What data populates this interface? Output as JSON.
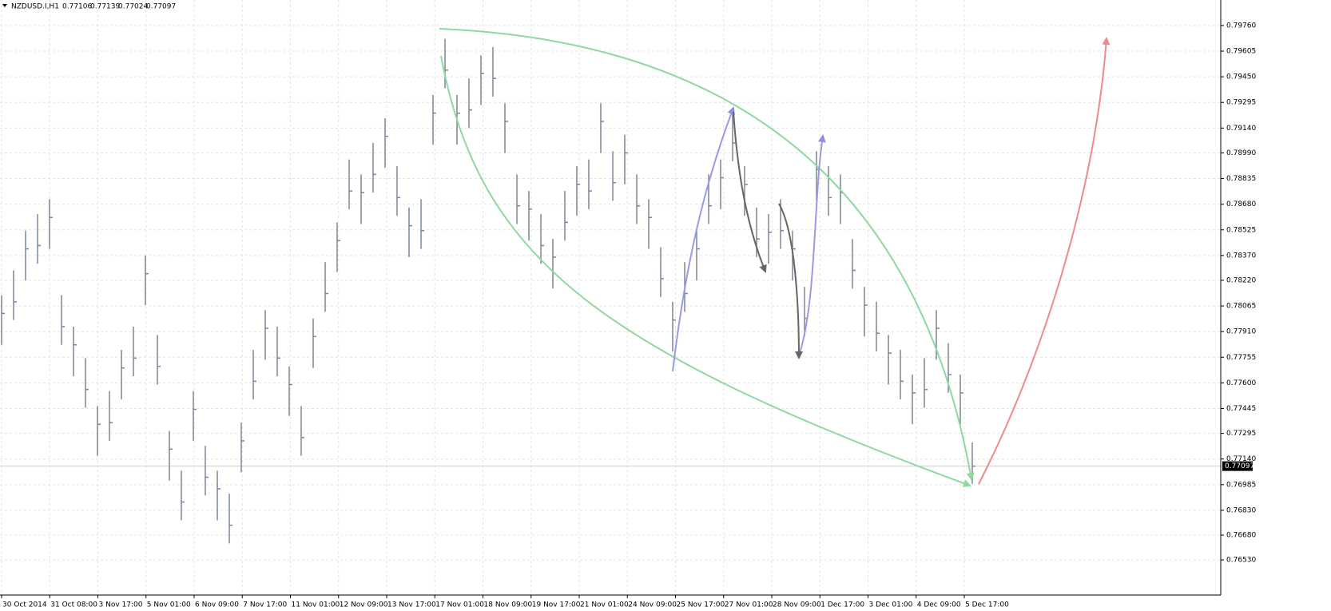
{
  "chart_data": {
    "type": "hlc",
    "title": "NZDUSD.I,H1",
    "header_values": [
      0.77106,
      0.77139,
      0.77024,
      0.77097
    ],
    "current_price": 0.77097,
    "color": "#7b8794",
    "grid": true,
    "ylim": [
      0.76318,
      0.79914
    ],
    "yticks": [
      {
        "value": 0.7976,
        "label": "0.79760"
      },
      {
        "value": 0.79605,
        "label": "0.79605"
      },
      {
        "value": 0.7945,
        "label": "0.79450"
      },
      {
        "value": 0.79295,
        "label": "0.79295"
      },
      {
        "value": 0.7914,
        "label": "0.79140"
      },
      {
        "value": 0.7899,
        "label": "0.78990"
      },
      {
        "value": 0.78835,
        "label": "0.78835"
      },
      {
        "value": 0.7868,
        "label": "0.78680"
      },
      {
        "value": 0.78525,
        "label": "0.78525"
      },
      {
        "value": 0.7837,
        "label": "0.78370"
      },
      {
        "value": 0.7822,
        "label": "0.78220"
      },
      {
        "value": 0.78065,
        "label": "0.78065"
      },
      {
        "value": 0.7791,
        "label": "0.77910"
      },
      {
        "value": 0.77755,
        "label": "0.77755"
      },
      {
        "value": 0.776,
        "label": "0.77600"
      },
      {
        "value": 0.77445,
        "label": "0.77445"
      },
      {
        "value": 0.77295,
        "label": "0.77295"
      },
      {
        "value": 0.7714,
        "label": "0.77140"
      },
      {
        "value": 0.76985,
        "label": "0.76985"
      },
      {
        "value": 0.7683,
        "label": "0.76830"
      },
      {
        "value": 0.7668,
        "label": "0.76680"
      },
      {
        "value": 0.7653,
        "label": "0.76530"
      }
    ],
    "x_labels": [
      "30 Oct 2014",
      "31 Oct 08:00",
      "3 Nov 17:00",
      "5 Nov 01:00",
      "6 Nov 09:00",
      "7 Nov 17:00",
      "11 Nov 01:00",
      "12 Nov 09:00",
      "13 Nov 17:00",
      "17 Nov 01:00",
      "18 Nov 09:00",
      "19 Nov 17:00",
      "21 Nov 01:00",
      "24 Nov 09:00",
      "25 Nov 17:00",
      "27 Nov 01:00",
      "28 Nov 09:00",
      "1 Dec 17:00",
      "3 Dec 01:00",
      "4 Dec 09:00",
      "5 Dec 17:00"
    ],
    "high": [
      0.7813,
      0.7828,
      0.7852,
      0.7862,
      0.7871,
      0.7813,
      0.7794,
      0.7775,
      0.7746,
      0.7755,
      0.778,
      0.7794,
      0.7837,
      0.7789,
      0.7731,
      0.7707,
      0.7755,
      0.7722,
      0.7707,
      0.7693,
      0.7736,
      0.778,
      0.7804,
      0.7794,
      0.777,
      0.7746,
      0.7799,
      0.7833,
      0.7857,
      0.7895,
      0.7886,
      0.7905,
      0.792,
      0.7891,
      0.7866,
      0.7871,
      0.7934,
      0.7968,
      0.7934,
      0.7944,
      0.7958,
      0.7963,
      0.7929,
      0.7886,
      0.7876,
      0.7862,
      0.7847,
      0.7876,
      0.7891,
      0.7895,
      0.7929,
      0.79,
      0.791,
      0.7886,
      0.7871,
      0.7842,
      0.7809,
      0.7833,
      0.7852,
      0.7886,
      0.7895,
      0.7924,
      0.7891,
      0.7866,
      0.7862,
      0.7871,
      0.7852,
      0.7818,
      0.79,
      0.7891,
      0.7886,
      0.7847,
      0.7818,
      0.7809,
      0.7789,
      0.778,
      0.7765,
      0.7775,
      0.7804,
      0.7784,
      0.7765,
      0.7724
    ],
    "low": [
      0.7783,
      0.7798,
      0.7822,
      0.7832,
      0.7841,
      0.7783,
      0.7764,
      0.7745,
      0.7716,
      0.7725,
      0.775,
      0.7764,
      0.7807,
      0.7759,
      0.7701,
      0.7677,
      0.7725,
      0.7692,
      0.7677,
      0.7663,
      0.7706,
      0.775,
      0.7774,
      0.7764,
      0.774,
      0.7716,
      0.7769,
      0.7803,
      0.7827,
      0.7865,
      0.7856,
      0.7875,
      0.789,
      0.7861,
      0.7836,
      0.7841,
      0.7904,
      0.7938,
      0.7904,
      0.7914,
      0.7928,
      0.7933,
      0.7899,
      0.7856,
      0.7846,
      0.7832,
      0.7817,
      0.7846,
      0.7861,
      0.7865,
      0.7899,
      0.787,
      0.788,
      0.7856,
      0.7841,
      0.7812,
      0.7779,
      0.7803,
      0.7822,
      0.7856,
      0.7865,
      0.7894,
      0.7861,
      0.7836,
      0.7832,
      0.7841,
      0.7822,
      0.7788,
      0.787,
      0.7861,
      0.7856,
      0.7817,
      0.7788,
      0.7779,
      0.7759,
      0.775,
      0.7735,
      0.7745,
      0.7774,
      0.7754,
      0.7735,
      0.7699
    ],
    "close": [
      0.7802,
      0.7809,
      0.7841,
      0.7843,
      0.786,
      0.7794,
      0.7783,
      0.7756,
      0.7735,
      0.7736,
      0.7769,
      0.7775,
      0.7826,
      0.777,
      0.772,
      0.7688,
      0.7744,
      0.7703,
      0.7696,
      0.7674,
      0.7725,
      0.7761,
      0.7793,
      0.7775,
      0.7759,
      0.7727,
      0.7788,
      0.7814,
      0.7846,
      0.7876,
      0.7875,
      0.7886,
      0.7909,
      0.7872,
      0.7855,
      0.7852,
      0.7923,
      0.7949,
      0.7923,
      0.7925,
      0.7947,
      0.7944,
      0.7918,
      0.7867,
      0.7865,
      0.7843,
      0.7836,
      0.7857,
      0.788,
      0.7876,
      0.7918,
      0.7881,
      0.7899,
      0.7867,
      0.786,
      0.7823,
      0.7798,
      0.7814,
      0.7841,
      0.7867,
      0.7884,
      0.7905,
      0.788,
      0.7847,
      0.7851,
      0.7852,
      0.7841,
      0.7799,
      0.7889,
      0.7872,
      0.7875,
      0.7828,
      0.7807,
      0.779,
      0.7778,
      0.7761,
      0.7754,
      0.7756,
      0.7793,
      0.7765,
      0.7754,
      0.77097
    ]
  }
}
